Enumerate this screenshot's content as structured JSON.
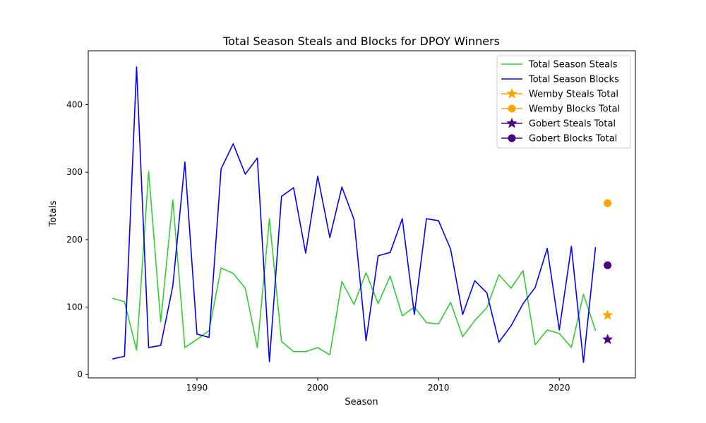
{
  "chart_data": {
    "type": "line",
    "title": "Total Season Steals and Blocks for DPOY Winners",
    "xlabel": "Season",
    "ylabel": "Totals",
    "xlim": [
      1981,
      2026.3
    ],
    "ylim": [
      -5,
      480
    ],
    "xticks": [
      1990,
      2000,
      2010,
      2020
    ],
    "yticks": [
      0,
      100,
      200,
      300,
      400
    ],
    "legend_position": "upper right",
    "x": [
      1983,
      1984,
      1985,
      1986,
      1987,
      1988,
      1989,
      1990,
      1991,
      1992,
      1993,
      1994,
      1995,
      1996,
      1997,
      1998,
      1999,
      2000,
      2001,
      2002,
      2003,
      2004,
      2005,
      2006,
      2007,
      2008,
      2009,
      2010,
      2011,
      2012,
      2013,
      2014,
      2015,
      2016,
      2017,
      2018,
      2019,
      2020,
      2021,
      2022,
      2023
    ],
    "series": [
      {
        "name": "Total Season Steals",
        "color": "#32cd32",
        "values": [
          113,
          108,
          36,
          301,
          78,
          259,
          40,
          52,
          65,
          158,
          150,
          128,
          40,
          231,
          49,
          34,
          34,
          40,
          29,
          138,
          104,
          151,
          105,
          146,
          87,
          100,
          77,
          75,
          107,
          56,
          80,
          99,
          148,
          128,
          154,
          44,
          66,
          61,
          40,
          119,
          65
        ]
      },
      {
        "name": "Total Season Blocks",
        "color": "#0000ff",
        "values": [
          23,
          27,
          456,
          40,
          43,
          131,
          315,
          60,
          55,
          305,
          342,
          297,
          321,
          19,
          264,
          277,
          180,
          294,
          203,
          278,
          230,
          50,
          176,
          181,
          231,
          89,
          231,
          228,
          186,
          89,
          139,
          121,
          48,
          72,
          105,
          129,
          187,
          66,
          190,
          18,
          189
        ]
      }
    ],
    "markers": [
      {
        "name": "Wemby Steals Total",
        "color": "#ffa500",
        "shape": "star",
        "x": 2024,
        "y": 88
      },
      {
        "name": "Wemby Blocks Total",
        "color": "#ffa500",
        "shape": "circle",
        "x": 2024,
        "y": 254
      },
      {
        "name": "Gobert Steals Total",
        "color": "#4b0082",
        "shape": "star",
        "x": 2024,
        "y": 52
      },
      {
        "name": "Gobert Blocks Total",
        "color": "#4b0082",
        "shape": "circle",
        "x": 2024,
        "y": 162
      }
    ]
  }
}
